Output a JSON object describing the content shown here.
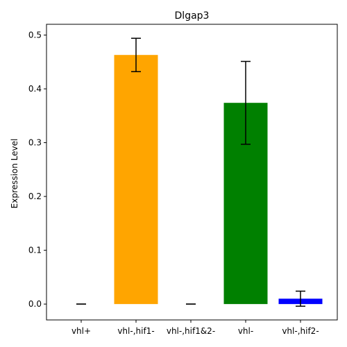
{
  "chart_data": {
    "type": "bar",
    "title": "Dlgap3",
    "xlabel": "",
    "ylabel": "Expression Level",
    "categories": [
      "vhl+",
      "vhl-,hif1-",
      "vhl-,hif1&2-",
      "vhl-",
      "vhl-,hif2-"
    ],
    "values": [
      0.0,
      0.463,
      0.0,
      0.374,
      0.01
    ],
    "errors": [
      0.0,
      0.031,
      0.0,
      0.077,
      0.014
    ],
    "colors": [
      "#ff0000",
      "#ffa500",
      "#ffff00",
      "#008000",
      "#0000ff"
    ],
    "ylim": [
      -0.0295,
      0.52
    ],
    "yticks": [
      0.0,
      0.1,
      0.2,
      0.3,
      0.4,
      0.5
    ],
    "ytick_labels": [
      "0.0",
      "0.1",
      "0.2",
      "0.3",
      "0.4",
      "0.5"
    ],
    "grid": false,
    "legend": "none"
  }
}
